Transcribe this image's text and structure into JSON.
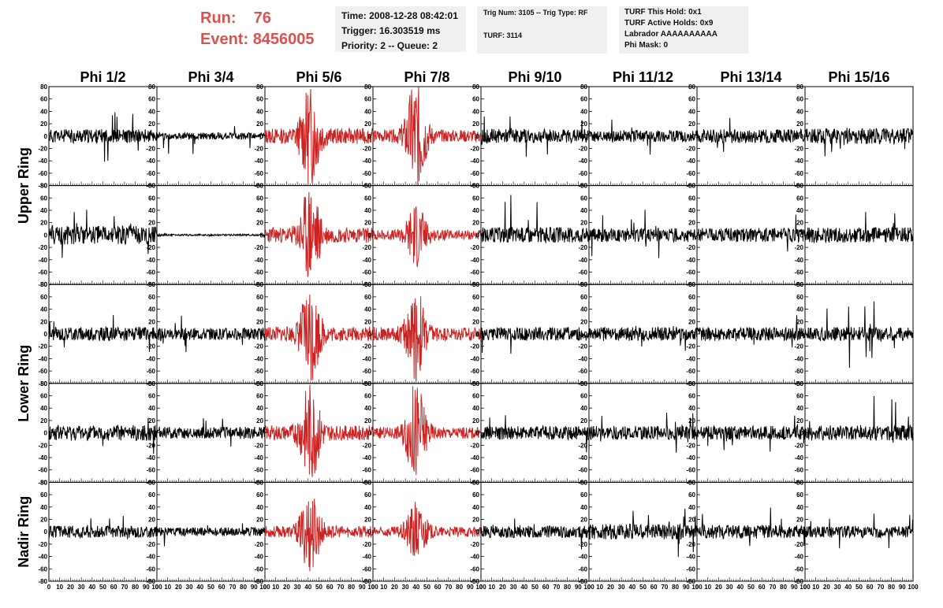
{
  "header": {
    "run_label": "Run:",
    "run_value": "76",
    "event_label": "Event:",
    "event_value": "8456005"
  },
  "info_box_1": {
    "time": "Time: 2008-12-28 08:42:01",
    "trigger": "Trigger: 16.303519 ms",
    "priority": "Priority: 2 -- Queue: 2"
  },
  "info_box_2": {
    "trig": "Trig Num: 3105 -- Trig Type: RF",
    "turf": "TURF: 3114"
  },
  "info_box_3": {
    "hold": "TURF This Hold: 0x1",
    "active": "TURF Active Holds: 0x9",
    "labrador": "Labrador AAAAAAAAAA",
    "phimask": "Phi Mask: 0"
  },
  "chart_data": {
    "type": "line",
    "columns": [
      "Phi 1/2",
      "Phi 3/4",
      "Phi 5/6",
      "Phi 7/8",
      "Phi 9/10",
      "Phi 11/12",
      "Phi 13/14",
      "Phi 15/16"
    ],
    "ring_labels": [
      {
        "label": "Upper Ring",
        "rows": [
          0,
          1
        ]
      },
      {
        "label": "Lower Ring",
        "rows": [
          2,
          3
        ]
      },
      {
        "label": "Nadir Ring",
        "rows": [
          4
        ]
      }
    ],
    "xlim": [
      0,
      100
    ],
    "ylim": [
      -80,
      80
    ],
    "x_ticks": [
      0,
      10,
      20,
      30,
      40,
      50,
      60,
      70,
      80,
      90,
      100
    ],
    "x_tick_labels": [
      "0",
      "10",
      "20",
      "30",
      "40",
      "50",
      "60",
      "70",
      "80",
      "90",
      "100"
    ],
    "y_ticks": [
      -80,
      -60,
      -40,
      -20,
      0,
      20,
      40,
      60,
      80
    ],
    "y_tick_labels": [
      "-80",
      "-60",
      "-40",
      "-20",
      "0",
      "20",
      "40",
      "60",
      "80"
    ],
    "colors": {
      "normal": "#000000",
      "triggered": "#cc2222"
    },
    "highlighted_columns": [
      2,
      3
    ],
    "waveforms_note_free": [
      [
        {
          "amp": 8,
          "peak": 30,
          "seed": 11
        },
        {
          "amp": 4,
          "peak": 25,
          "seed": 12
        },
        {
          "amp": 20,
          "peak": 60,
          "seed": 13
        },
        {
          "amp": 16,
          "peak": 70,
          "seed": 14
        },
        {
          "amp": 8,
          "peak": 25,
          "seed": 15
        },
        {
          "amp": 7,
          "peak": 22,
          "seed": 16
        },
        {
          "amp": 8,
          "peak": 25,
          "seed": 17
        },
        {
          "amp": 9,
          "peak": 25,
          "seed": 18
        }
      ],
      [
        {
          "amp": 11,
          "peak": 35,
          "seed": 21
        },
        {
          "amp": 1,
          "peak": 3,
          "seed": 22
        },
        {
          "amp": 20,
          "peak": 60,
          "seed": 23
        },
        {
          "amp": 13,
          "peak": 40,
          "seed": 24
        },
        {
          "amp": 9,
          "peak": 55,
          "seed": 25
        },
        {
          "amp": 8,
          "peak": 30,
          "seed": 26
        },
        {
          "amp": 8,
          "peak": 25,
          "seed": 27
        },
        {
          "amp": 9,
          "peak": 28,
          "seed": 28
        }
      ],
      [
        {
          "amp": 8,
          "peak": 25,
          "seed": 31
        },
        {
          "amp": 7,
          "peak": 22,
          "seed": 32
        },
        {
          "amp": 19,
          "peak": 60,
          "seed": 33
        },
        {
          "amp": 18,
          "peak": 55,
          "seed": 34
        },
        {
          "amp": 8,
          "peak": 26,
          "seed": 35
        },
        {
          "amp": 8,
          "peak": 24,
          "seed": 36
        },
        {
          "amp": 8,
          "peak": 25,
          "seed": 37
        },
        {
          "amp": 8,
          "peak": 40,
          "seed": 38
        }
      ],
      [
        {
          "amp": 9,
          "peak": 28,
          "seed": 41
        },
        {
          "amp": 7,
          "peak": 22,
          "seed": 42
        },
        {
          "amp": 19,
          "peak": 60,
          "seed": 43
        },
        {
          "amp": 15,
          "peak": 60,
          "seed": 44
        },
        {
          "amp": 8,
          "peak": 25,
          "seed": 45
        },
        {
          "amp": 8,
          "peak": 24,
          "seed": 46
        },
        {
          "amp": 8,
          "peak": 22,
          "seed": 47
        },
        {
          "amp": 9,
          "peak": 45,
          "seed": 48
        }
      ],
      [
        {
          "amp": 7,
          "peak": 20,
          "seed": 51
        },
        {
          "amp": 5,
          "peak": 18,
          "seed": 52
        },
        {
          "amp": 15,
          "peak": 50,
          "seed": 53
        },
        {
          "amp": 13,
          "peak": 38,
          "seed": 54
        },
        {
          "amp": 7,
          "peak": 22,
          "seed": 55
        },
        {
          "amp": 9,
          "peak": 30,
          "seed": 56
        },
        {
          "amp": 8,
          "peak": 28,
          "seed": 57
        },
        {
          "amp": 7,
          "peak": 22,
          "seed": 58
        }
      ]
    ]
  }
}
